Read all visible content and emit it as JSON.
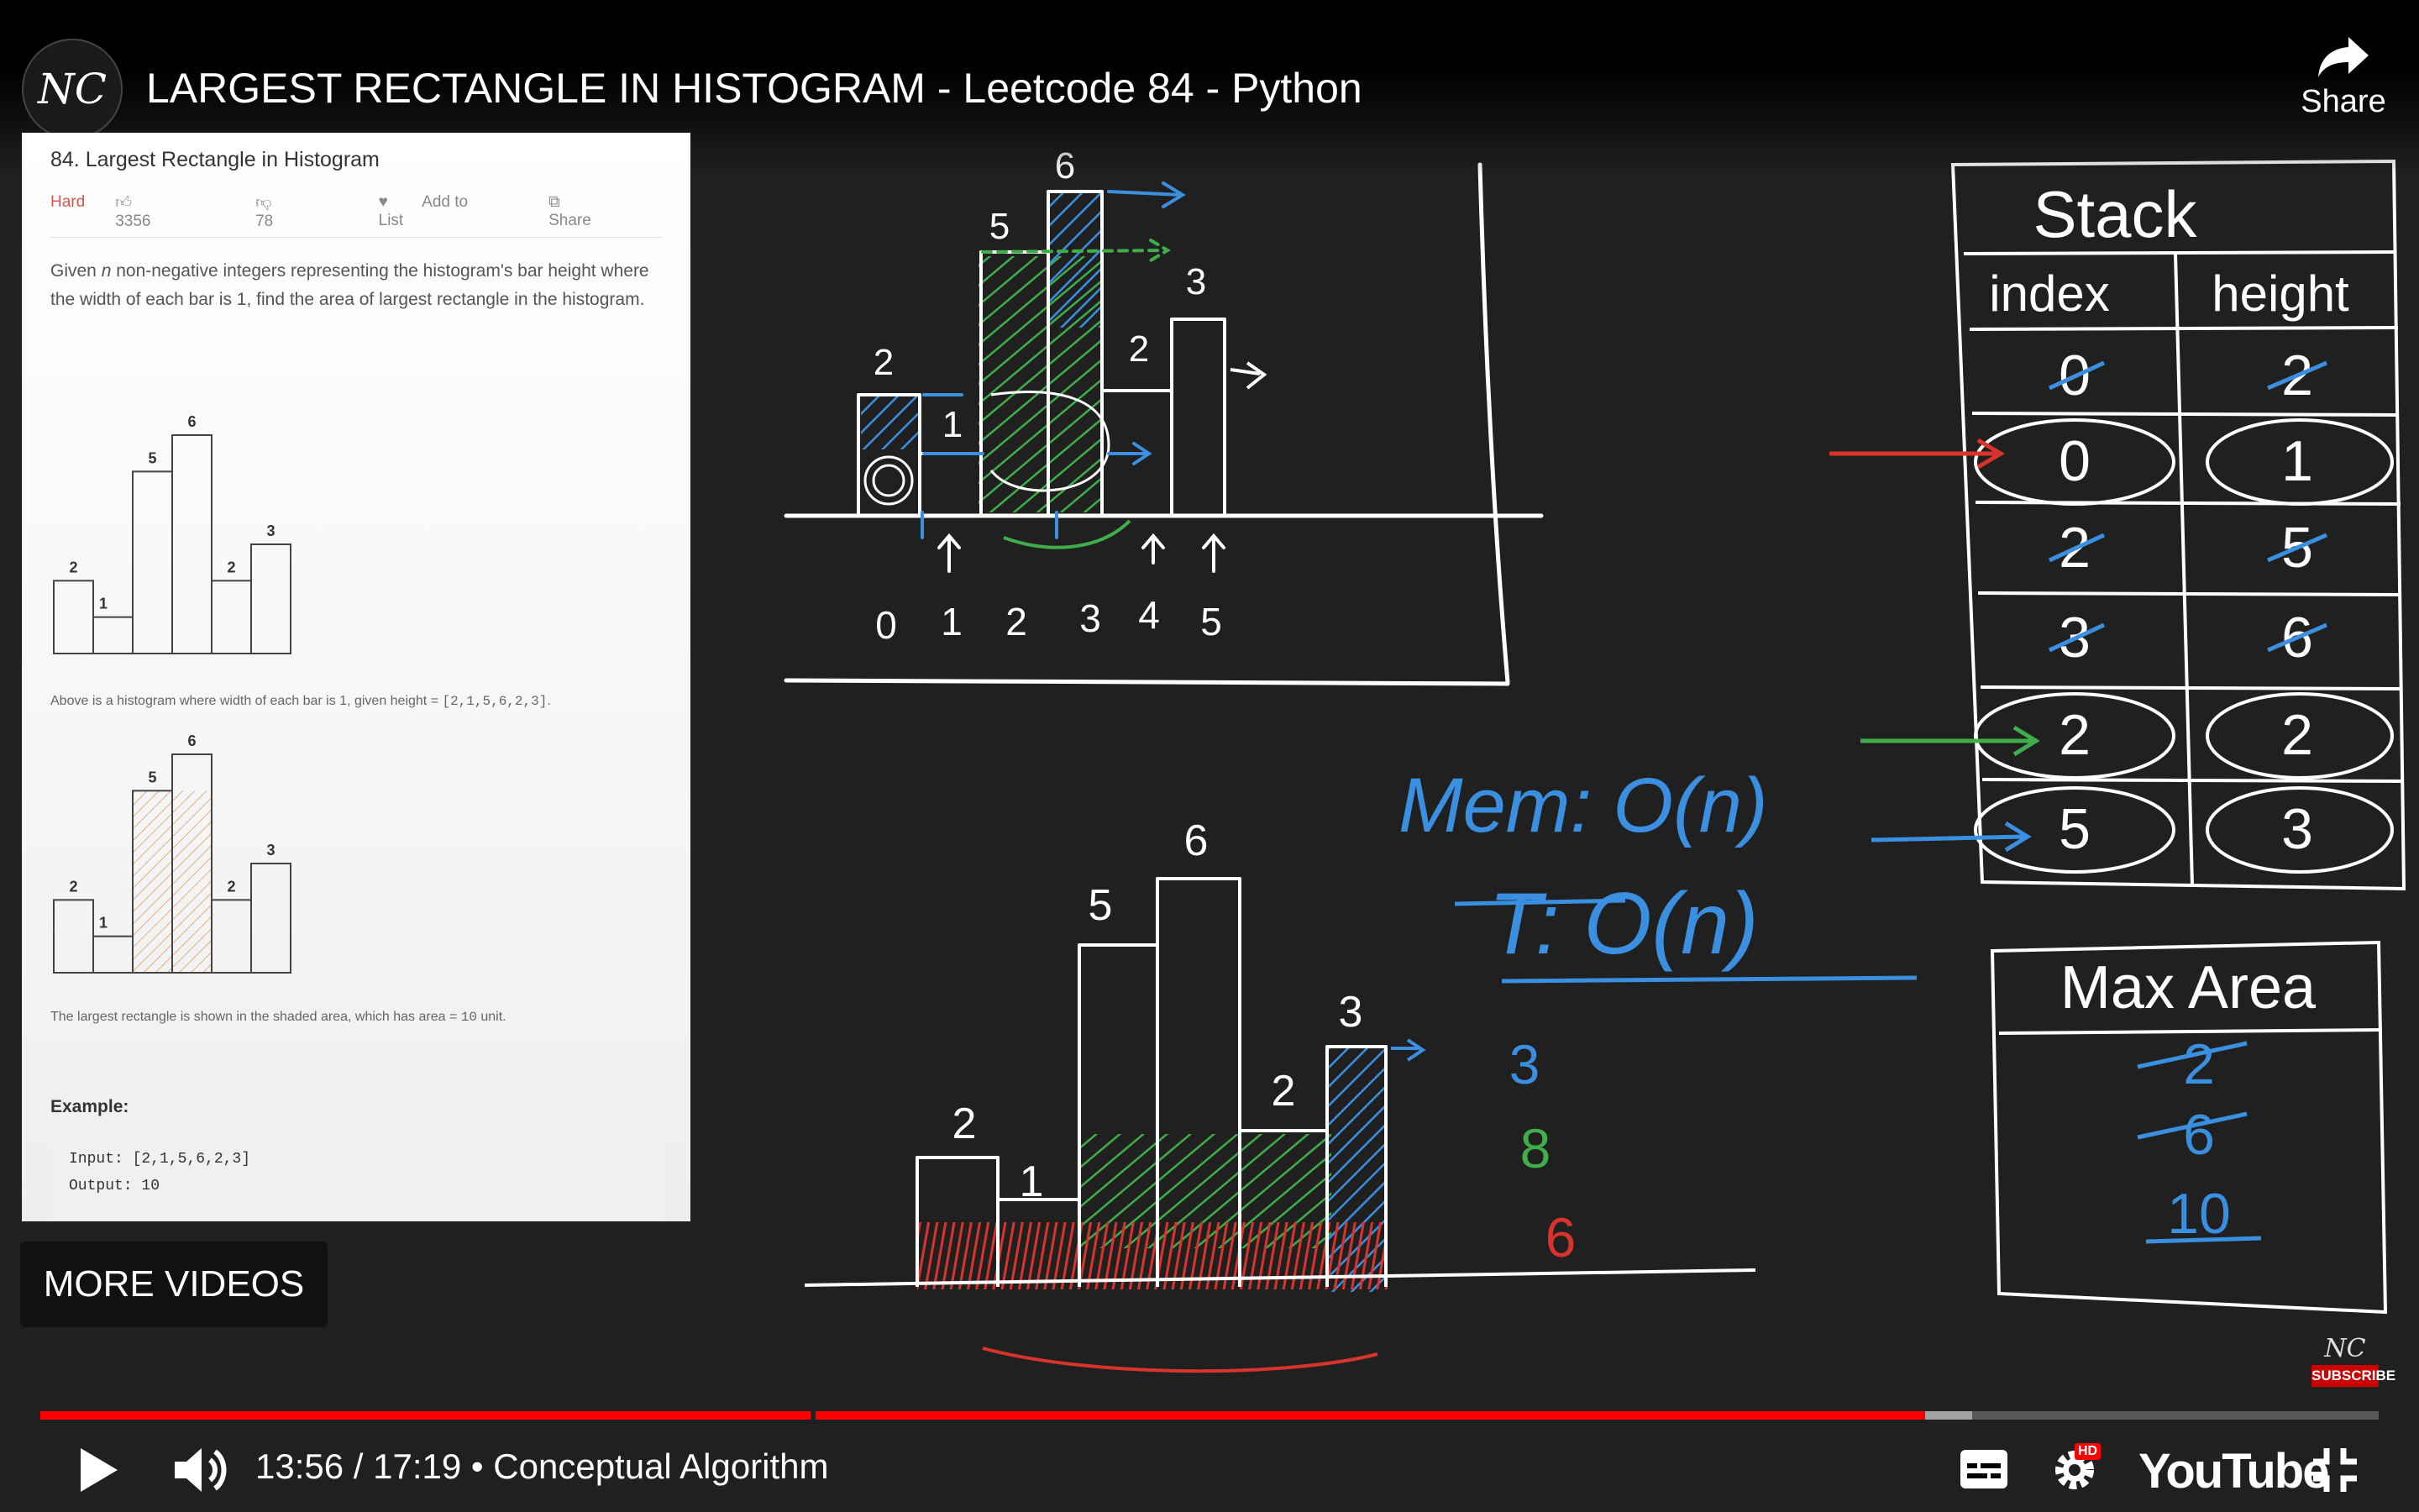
{
  "player": {
    "title": "LARGEST RECTANGLE IN HISTOGRAM - Leetcode 84 - Python",
    "channel_logo": "NC",
    "share_label": "Share",
    "more_videos_label": "MORE VIDEOS",
    "time_current": "13:56",
    "time_total": "17:19",
    "chapter": "Conceptual Algorithm",
    "progress_fraction": 0.806,
    "buffer_fraction": 0.826,
    "subscribe_logo": "NC",
    "subscribe_label": "SUBSCRIBE",
    "youtube_logo": "YouTube",
    "hd_badge": "HD",
    "icons": [
      "play-icon",
      "volume-icon",
      "subtitles-icon",
      "settings-icon",
      "fullscreen-exit-icon",
      "share-icon"
    ]
  },
  "problem": {
    "title": "84. Largest Rectangle in Histogram",
    "difficulty": "Hard",
    "likes": "3356",
    "dislikes": "78",
    "add_to_list": "Add to List",
    "share": "Share",
    "description_1": "Given ",
    "description_n": "n",
    "description_2": " non-negative integers representing the histogram's bar height where the width of each bar is 1, find the area of largest rectangle in the histogram.",
    "caption1_text": "Above is a histogram where width of each bar is 1, given height = ",
    "caption1_code": "[2,1,5,6,2,3]",
    "caption1_end": ".",
    "caption2_text": "The largest rectangle is shown in the shaded area, which has area = ",
    "caption2_code": "10",
    "caption2_end": " unit.",
    "example_heading": "Example:",
    "example_input": "Input: [2,1,5,6,2,3]",
    "example_output": "Output: 10",
    "heights": [
      2,
      1,
      5,
      6,
      2,
      3
    ],
    "shaded_bars": [
      2,
      3
    ]
  },
  "whiteboard": {
    "top_histogram_heights": [
      "2",
      "1",
      "5",
      "6",
      "2",
      "3"
    ],
    "top_indices": [
      "0",
      "1",
      "2",
      "3",
      "4",
      "5"
    ],
    "bottom_histogram_heights": [
      "2",
      "1",
      "5",
      "6",
      "2",
      "3"
    ],
    "mem": "Mem: O(n)",
    "time": "T: O(n)",
    "area_values": [
      {
        "text": "3",
        "color": "#3b8fe0"
      },
      {
        "text": "8",
        "color": "#3fae4a"
      },
      {
        "text": "6",
        "color": "#d8342c"
      }
    ],
    "stack_title": "Stack",
    "stack_headers": [
      "index",
      "height"
    ],
    "stack_rows": [
      {
        "index": "0",
        "height": "2",
        "crossed": true
      },
      {
        "index": "0",
        "height": "1",
        "crossed": false,
        "circled": true
      },
      {
        "index": "2",
        "height": "5",
        "crossed": true
      },
      {
        "index": "3",
        "height": "6",
        "crossed": true
      },
      {
        "index": "2",
        "height": "2",
        "crossed": false,
        "circled": true
      },
      {
        "index": "5",
        "height": "3",
        "crossed": false,
        "circled": true
      }
    ],
    "max_area_title": "Max Area",
    "max_area_values": [
      {
        "text": "2",
        "crossed": true
      },
      {
        "text": "6",
        "crossed": true
      },
      {
        "text": "10",
        "crossed": false
      }
    ]
  }
}
